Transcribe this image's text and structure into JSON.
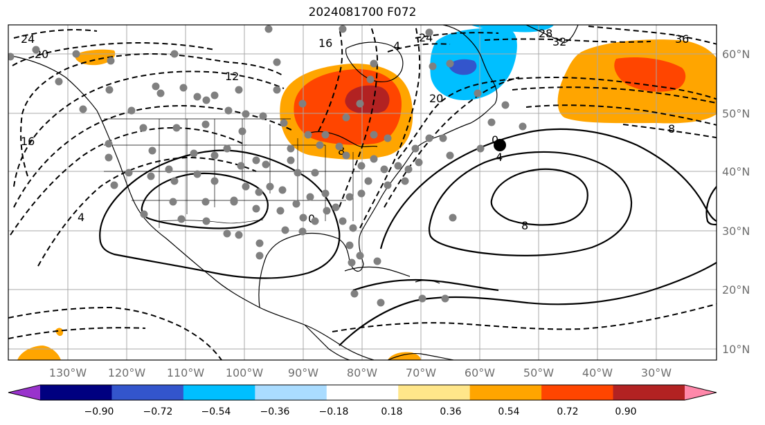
{
  "title": "2024081700 F072",
  "longitude_labels": [
    "130°W",
    "120°W",
    "110°W",
    "100°W",
    "90°W",
    "80°W",
    "70°W",
    "60°W",
    "50°W",
    "40°W",
    "30°W"
  ],
  "latitude_labels": [
    "60°N",
    "50°N",
    "40°N",
    "30°N",
    "20°N",
    "10°N"
  ],
  "colorbar": {
    "tick_labels": [
      "−0.90",
      "−0.72",
      "−0.54",
      "−0.36",
      "−0.18",
      "0.18",
      "0.36",
      "0.54",
      "0.72",
      "0.90"
    ],
    "colors": [
      "#9933cc",
      "#000080",
      "#3355cc",
      "#00bfff",
      "#aadcff",
      "#ffffff",
      "#ffe68a",
      "#ffa500",
      "#ff4500",
      "#b22222",
      "#ff88aa"
    ]
  },
  "contour_labels": [
    "24",
    "20",
    "16",
    "12",
    "4",
    "16",
    "8",
    "4",
    "0",
    "24",
    "28",
    "32",
    "36",
    "20",
    "8",
    "4",
    "0",
    "8"
  ],
  "shaded_colors": {
    "orange": "#ffa500",
    "red_orange": "#ff4500",
    "dark_red": "#b22222",
    "light_blue": "#00bfff",
    "blue": "#3355cc"
  },
  "station_marker_color": "#808080",
  "highlight_marker_color": "#000000"
}
